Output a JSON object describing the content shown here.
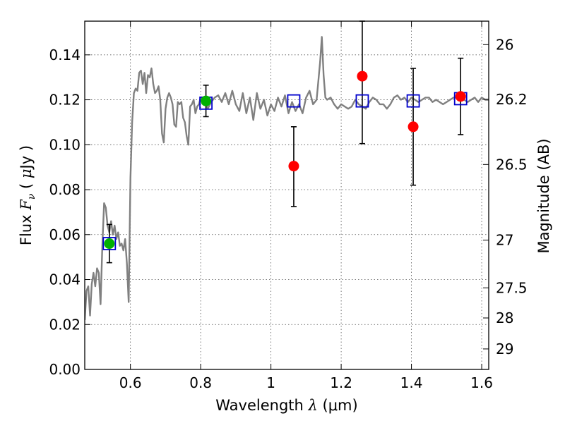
{
  "chart_data": {
    "type": "scatter",
    "title": "",
    "xlabel": "Wavelength  λ (μm)",
    "xlabel_parts": {
      "prefix": "Wavelength  ",
      "symbol": "λ",
      "unit": " (μm)"
    },
    "ylabel": "Flux  Fν  ( μJy )",
    "ylabel_parts": {
      "prefix": "Flux  ",
      "symbol": "F",
      "subscript": "ν",
      "unit_open": "  ( ",
      "unit_mu": "μ",
      "unit": "Jy )"
    },
    "y2label": "Magnitude (AB)",
    "xlim": [
      0.47,
      1.62
    ],
    "ylim": [
      0.0,
      0.155
    ],
    "grid": true,
    "xticks": [
      0.6,
      0.8,
      1.0,
      1.2,
      1.4,
      1.6
    ],
    "xtick_labels": [
      "0.6",
      "0.8",
      "1",
      "1.2",
      "1.4",
      "1.6"
    ],
    "yticks": [
      0.0,
      0.02,
      0.04,
      0.06,
      0.08,
      0.1,
      0.12,
      0.14
    ],
    "ytick_labels": [
      "0.00",
      "0.02",
      "0.04",
      "0.06",
      "0.08",
      "0.10",
      "0.12",
      "0.14"
    ],
    "mag_ticks": [
      26,
      26.2,
      26.5,
      27,
      27.5,
      28,
      29
    ],
    "mag_tick_labels": [
      "26",
      "26.2",
      "26.5",
      "27",
      "27.5",
      "28",
      "29"
    ],
    "colors": {
      "model": "#808080",
      "green": "#00b000",
      "red": "#ff0000",
      "blue": "#0000cc",
      "errbar": "#000000",
      "grid": "#555555"
    },
    "series": [
      {
        "name": "model spectrum",
        "kind": "line",
        "x": [
          0.47,
          0.475,
          0.48,
          0.485,
          0.49,
          0.495,
          0.5,
          0.505,
          0.51,
          0.515,
          0.52,
          0.525,
          0.53,
          0.535,
          0.54,
          0.545,
          0.55,
          0.555,
          0.56,
          0.565,
          0.57,
          0.575,
          0.58,
          0.585,
          0.59,
          0.595,
          0.6,
          0.605,
          0.61,
          0.615,
          0.62,
          0.625,
          0.63,
          0.635,
          0.64,
          0.645,
          0.65,
          0.655,
          0.66,
          0.665,
          0.67,
          0.675,
          0.68,
          0.685,
          0.69,
          0.695,
          0.7,
          0.705,
          0.71,
          0.715,
          0.72,
          0.725,
          0.73,
          0.735,
          0.74,
          0.745,
          0.75,
          0.755,
          0.76,
          0.765,
          0.77,
          0.775,
          0.78,
          0.785,
          0.79,
          0.795,
          0.8,
          0.81,
          0.82,
          0.83,
          0.84,
          0.85,
          0.86,
          0.87,
          0.88,
          0.89,
          0.9,
          0.91,
          0.92,
          0.93,
          0.94,
          0.95,
          0.96,
          0.97,
          0.98,
          0.99,
          1.0,
          1.01,
          1.02,
          1.03,
          1.04,
          1.05,
          1.06,
          1.07,
          1.08,
          1.09,
          1.1,
          1.11,
          1.12,
          1.13,
          1.14,
          1.145,
          1.15,
          1.155,
          1.16,
          1.17,
          1.18,
          1.19,
          1.2,
          1.21,
          1.22,
          1.23,
          1.24,
          1.25,
          1.26,
          1.27,
          1.28,
          1.29,
          1.3,
          1.31,
          1.32,
          1.33,
          1.34,
          1.35,
          1.36,
          1.37,
          1.38,
          1.39,
          1.4,
          1.41,
          1.42,
          1.43,
          1.44,
          1.45,
          1.46,
          1.47,
          1.48,
          1.49,
          1.5,
          1.51,
          1.52,
          1.53,
          1.54,
          1.55,
          1.56,
          1.57,
          1.58,
          1.59,
          1.6,
          1.61,
          1.62
        ],
        "y": [
          0.022,
          0.035,
          0.037,
          0.024,
          0.038,
          0.043,
          0.037,
          0.045,
          0.043,
          0.029,
          0.055,
          0.074,
          0.072,
          0.064,
          0.061,
          0.066,
          0.06,
          0.064,
          0.058,
          0.061,
          0.055,
          0.056,
          0.053,
          0.058,
          0.047,
          0.03,
          0.085,
          0.11,
          0.123,
          0.125,
          0.124,
          0.132,
          0.133,
          0.127,
          0.132,
          0.123,
          0.131,
          0.13,
          0.134,
          0.127,
          0.123,
          0.124,
          0.126,
          0.12,
          0.105,
          0.101,
          0.116,
          0.121,
          0.123,
          0.121,
          0.118,
          0.109,
          0.108,
          0.119,
          0.118,
          0.119,
          0.112,
          0.11,
          0.104,
          0.1,
          0.117,
          0.118,
          0.12,
          0.114,
          0.117,
          0.118,
          0.121,
          0.121,
          0.116,
          0.119,
          0.121,
          0.122,
          0.119,
          0.123,
          0.118,
          0.124,
          0.118,
          0.115,
          0.123,
          0.114,
          0.121,
          0.111,
          0.123,
          0.116,
          0.12,
          0.113,
          0.118,
          0.115,
          0.121,
          0.117,
          0.122,
          0.114,
          0.119,
          0.115,
          0.118,
          0.114,
          0.121,
          0.124,
          0.118,
          0.12,
          0.137,
          0.148,
          0.131,
          0.121,
          0.12,
          0.121,
          0.118,
          0.116,
          0.118,
          0.117,
          0.116,
          0.117,
          0.12,
          0.118,
          0.117,
          0.116,
          0.119,
          0.121,
          0.12,
          0.118,
          0.118,
          0.116,
          0.118,
          0.121,
          0.122,
          0.12,
          0.121,
          0.119,
          0.121,
          0.12,
          0.119,
          0.12,
          0.121,
          0.121,
          0.119,
          0.12,
          0.119,
          0.118,
          0.119,
          0.12,
          0.121,
          0.121,
          0.121,
          0.12,
          0.119,
          0.12,
          0.121,
          0.119,
          0.121,
          0.12,
          0.12
        ]
      },
      {
        "name": "green points",
        "kind": "point",
        "x": [
          0.54,
          0.815
        ],
        "y": [
          0.056,
          0.1195
        ],
        "yerr_low": [
          0.0475,
          0.1125
        ],
        "yerr_high": [
          0.0645,
          0.1265
        ]
      },
      {
        "name": "red points",
        "kind": "point",
        "x": [
          1.065,
          1.26,
          1.405,
          1.54
        ],
        "y": [
          0.0905,
          0.1305,
          0.108,
          0.1215
        ],
        "yerr_low": [
          0.0725,
          0.1005,
          0.082,
          0.1045
        ],
        "yerr_high": [
          0.108,
          0.155,
          0.134,
          0.1385
        ]
      },
      {
        "name": "model photometry",
        "kind": "square",
        "x": [
          0.54,
          0.815,
          1.065,
          1.26,
          1.405,
          1.54
        ],
        "y": [
          0.056,
          0.1185,
          0.1195,
          0.1195,
          0.1195,
          0.1205
        ]
      }
    ]
  }
}
